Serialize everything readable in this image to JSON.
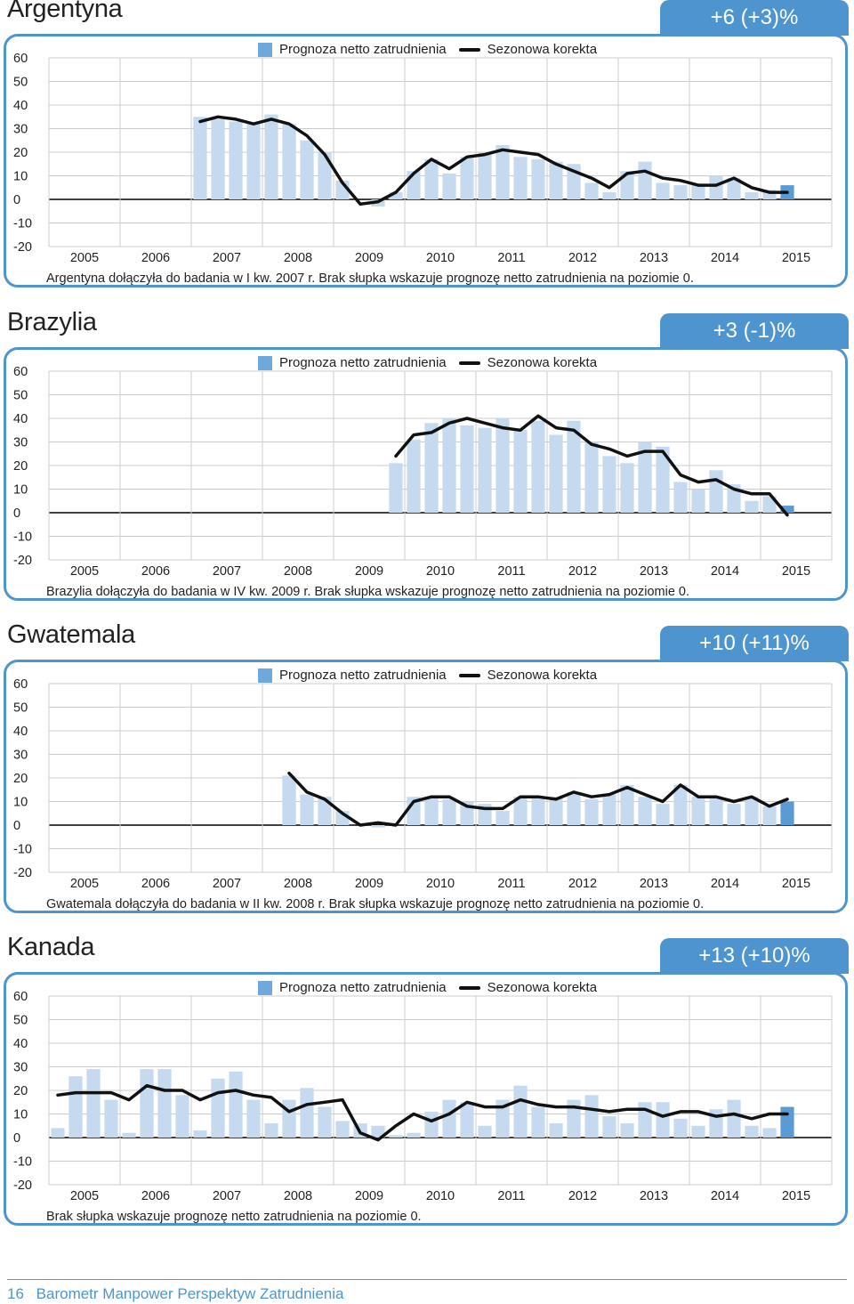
{
  "legend": {
    "bar_label": "Prognoza netto zatrudnienia",
    "line_label": "Sezonowa korekta"
  },
  "footer": {
    "page_number": "16",
    "publication": "Barometr Manpower Perspektyw Zatrudnienia"
  },
  "colors": {
    "accent": "#4e95cf",
    "bar": "#c5d9ef",
    "bar_latest": "#5b9bd5",
    "line": "#111111",
    "grid": "#cccccc"
  },
  "chart_data": [
    {
      "type": "bar",
      "title": "Argentyna",
      "badge": "+6 (+3)%",
      "note": "Argentyna dołączyła do badania w I kw. 2007 r. Brak słupka wskazuje prognozę netto zatrudnienia na poziomie 0.",
      "y_ticks": [
        "60",
        "50",
        "40",
        "30",
        "20",
        "10",
        "0",
        "-10",
        "-20"
      ],
      "ylim": [
        -20,
        60
      ],
      "years": [
        "2005",
        "2006",
        "2007",
        "2008",
        "2009",
        "2010",
        "2011",
        "2012",
        "2013",
        "2014",
        "2015"
      ],
      "start_quarter": 8,
      "series": [
        {
          "name": "Prognoza netto zatrudnienia",
          "values": [
            35,
            34,
            33,
            32,
            36,
            32,
            25,
            20,
            8,
            0,
            -3,
            3,
            12,
            17,
            11,
            18,
            20,
            23,
            18,
            17,
            16,
            15,
            7,
            3,
            12,
            16,
            7,
            6,
            6,
            10,
            9,
            3,
            4,
            6
          ]
        },
        {
          "name": "Sezonowa korekta",
          "values": [
            33,
            35,
            34,
            32,
            34,
            32,
            27,
            19,
            7,
            -2,
            -1,
            3,
            11,
            17,
            13,
            18,
            19,
            21,
            20,
            19,
            15,
            12,
            9,
            5,
            11,
            12,
            9,
            8,
            6,
            6,
            9,
            5,
            3,
            3
          ]
        }
      ]
    },
    {
      "type": "bar",
      "title": "Brazylia",
      "badge": "+3 (-1)%",
      "note": "Brazylia dołączyła do badania w IV kw. 2009 r. Brak słupka wskazuje prognozę netto zatrudnienia na poziomie 0.",
      "y_ticks": [
        "60",
        "50",
        "40",
        "30",
        "20",
        "10",
        "0",
        "-10",
        "-20"
      ],
      "ylim": [
        -20,
        60
      ],
      "years": [
        "2005",
        "2006",
        "2007",
        "2008",
        "2009",
        "2010",
        "2011",
        "2012",
        "2013",
        "2014",
        "2015"
      ],
      "start_quarter": 19,
      "series": [
        {
          "name": "Prognoza netto zatrudnienia",
          "values": [
            21,
            31,
            38,
            40,
            37,
            36,
            40,
            35,
            39,
            33,
            39,
            30,
            24,
            21,
            30,
            28,
            13,
            10,
            18,
            12,
            5,
            7,
            3
          ]
        },
        {
          "name": "Sezonowa korekta",
          "values": [
            24,
            33,
            34,
            38,
            40,
            38,
            36,
            35,
            41,
            36,
            35,
            29,
            27,
            24,
            26,
            26,
            16,
            13,
            14,
            10,
            8,
            8,
            -1
          ]
        }
      ]
    },
    {
      "type": "bar",
      "title": "Gwatemala",
      "badge": "+10 (+11)%",
      "note": "Gwatemala dołączyła do badania w II kw. 2008 r. Brak słupka wskazuje prognozę netto zatrudnienia na poziomie 0.",
      "y_ticks": [
        "60",
        "50",
        "40",
        "30",
        "20",
        "10",
        "0",
        "-10",
        "-20"
      ],
      "ylim": [
        -20,
        60
      ],
      "years": [
        "2005",
        "2006",
        "2007",
        "2008",
        "2009",
        "2010",
        "2011",
        "2012",
        "2013",
        "2014",
        "2015"
      ],
      "start_quarter": 13,
      "series": [
        {
          "name": "Prognoza netto zatrudnienia",
          "values": [
            21,
            13,
            12,
            6,
            0,
            -1,
            0,
            12,
            12,
            11,
            10,
            9,
            6,
            12,
            12,
            12,
            14,
            11,
            13,
            17,
            12,
            9,
            17,
            12,
            12,
            9,
            12,
            8,
            10
          ]
        },
        {
          "name": "Sezonowa korekta",
          "values": [
            22,
            14,
            11,
            5,
            0,
            1,
            0,
            10,
            12,
            12,
            8,
            7,
            7,
            12,
            12,
            11,
            14,
            12,
            13,
            16,
            13,
            10,
            17,
            12,
            12,
            10,
            12,
            8,
            11
          ]
        }
      ]
    },
    {
      "type": "bar",
      "title": "Kanada",
      "badge": "+13 (+10)%",
      "note": "Brak słupka wskazuje prognozę netto zatrudnienia na poziomie 0.",
      "y_ticks": [
        "60",
        "50",
        "40",
        "30",
        "20",
        "10",
        "0",
        "-10",
        "-20"
      ],
      "ylim": [
        -20,
        60
      ],
      "years": [
        "2005",
        "2006",
        "2007",
        "2008",
        "2009",
        "2010",
        "2011",
        "2012",
        "2013",
        "2014",
        "2015"
      ],
      "start_quarter": 0,
      "series": [
        {
          "name": "Prognoza netto zatrudnienia",
          "values": [
            4,
            26,
            29,
            16,
            2,
            29,
            29,
            18,
            3,
            25,
            28,
            16,
            6,
            16,
            21,
            13,
            7,
            6,
            5,
            1,
            2,
            11,
            16,
            15,
            5,
            16,
            22,
            13,
            6,
            16,
            18,
            9,
            6,
            15,
            15,
            8,
            5,
            12,
            16,
            5,
            4,
            13
          ]
        },
        {
          "name": "Sezonowa korekta",
          "values": [
            18,
            19,
            19,
            19,
            16,
            22,
            20,
            20,
            16,
            19,
            20,
            18,
            17,
            11,
            14,
            15,
            16,
            2,
            -1,
            5,
            10,
            7,
            10,
            15,
            13,
            13,
            16,
            14,
            13,
            13,
            12,
            11,
            12,
            12,
            9,
            11,
            11,
            9,
            10,
            8,
            10,
            10
          ]
        }
      ]
    }
  ]
}
